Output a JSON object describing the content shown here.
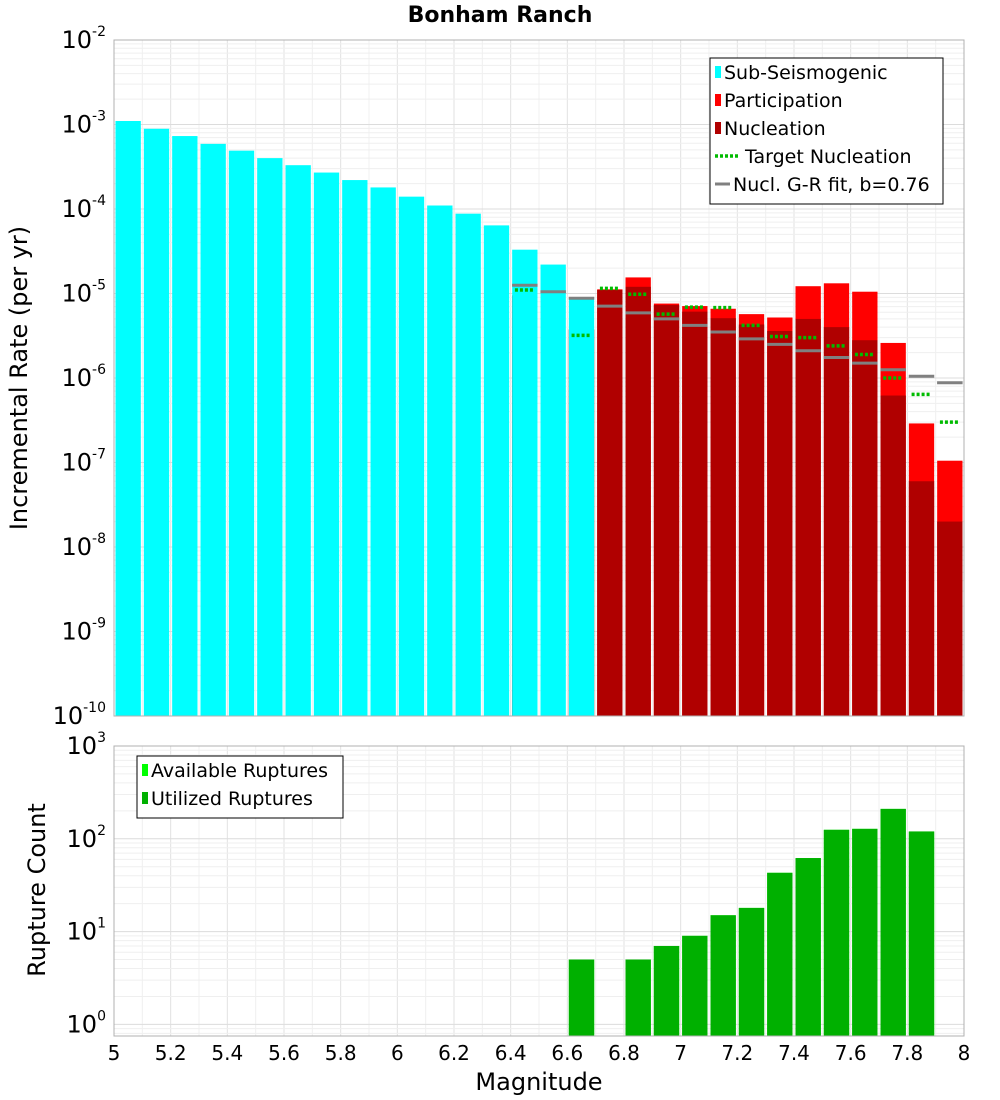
{
  "chart_data": [
    {
      "type": "bar",
      "title": "Bonham Ranch",
      "xlabel": "",
      "ylabel": "Incremental Rate (per yr)",
      "yscale": "log",
      "xlim": [
        5,
        8
      ],
      "ylim": [
        1e-10,
        0.01
      ],
      "y_ticks": [
        {
          "base": "10",
          "exp": "-10",
          "value": 1e-10
        },
        {
          "base": "10",
          "exp": "-9",
          "value": 1e-09
        },
        {
          "base": "10",
          "exp": "-8",
          "value": 1e-08
        },
        {
          "base": "10",
          "exp": "-7",
          "value": 1e-07
        },
        {
          "base": "10",
          "exp": "-6",
          "value": 1e-06
        },
        {
          "base": "10",
          "exp": "-5",
          "value": 1e-05
        },
        {
          "base": "10",
          "exp": "-4",
          "value": 0.0001
        },
        {
          "base": "10",
          "exp": "-3",
          "value": 0.001
        },
        {
          "base": "10",
          "exp": "-2",
          "value": 0.01
        }
      ],
      "bin_width": 0.1,
      "legend_position": "top-right",
      "legend": [
        {
          "label": "Sub-Seismogenic",
          "color": "#00ffff",
          "kind": "bar"
        },
        {
          "label": "Participation",
          "color": "#ff0000",
          "kind": "bar"
        },
        {
          "label": "Nucleation",
          "color": "#b00000",
          "kind": "bar"
        },
        {
          "label": "Target Nucleation",
          "color": "#00bb00",
          "kind": "dotted"
        },
        {
          "label": "Nucl. G-R fit, b=0.76",
          "color": "#808080",
          "kind": "line"
        }
      ],
      "series": [
        {
          "name": "Sub-Seismogenic",
          "color": "#00ffff",
          "x": [
            5.05,
            5.15,
            5.25,
            5.35,
            5.45,
            5.55,
            5.65,
            5.75,
            5.85,
            5.95,
            6.05,
            6.15,
            6.25,
            6.35,
            6.45,
            6.55,
            6.65
          ],
          "values": [
            0.0011,
            0.00089,
            0.00073,
            0.00059,
            0.00049,
            0.0004,
            0.00033,
            0.00027,
            0.00022,
            0.00018,
            0.00014,
            0.00011,
            8.8e-05,
            6.4e-05,
            3.3e-05,
            2.2e-05,
            8.9e-06
          ]
        },
        {
          "name": "Participation",
          "color": "#ff0000",
          "x": [
            6.45,
            6.65,
            6.75,
            6.85,
            6.95,
            7.05,
            7.15,
            7.25,
            7.35,
            7.45,
            7.55,
            7.65,
            7.75,
            7.85,
            7.95
          ],
          "values": [
            9.5e-06,
            3.8e-06,
            1.12e-05,
            1.55e-05,
            7.6e-06,
            7.1e-06,
            6.6e-06,
            5.7e-06,
            5.2e-06,
            1.22e-05,
            1.32e-05,
            1.05e-05,
            2.6e-06,
            2.9e-07,
            1.05e-07
          ]
        },
        {
          "name": "Nucleation",
          "color": "#b00000",
          "x": [
            6.45,
            6.65,
            6.75,
            6.85,
            6.95,
            7.05,
            7.15,
            7.25,
            7.35,
            7.45,
            7.55,
            7.65,
            7.75,
            7.85,
            7.95
          ],
          "values": [
            9.5e-06,
            3.7e-06,
            1.1e-05,
            1.2e-05,
            7.3e-06,
            6.1e-06,
            5.1e-06,
            4.3e-06,
            3.6e-06,
            5e-06,
            4e-06,
            2.8e-06,
            6.2e-07,
            6e-08,
            2e-08
          ]
        },
        {
          "name": "Target Nucleation",
          "color": "#00bb00",
          "x": [
            6.45,
            6.65,
            6.75,
            6.85,
            6.95,
            7.05,
            7.15,
            7.25,
            7.35,
            7.45,
            7.55,
            7.65,
            7.75,
            7.85,
            7.95
          ],
          "values": [
            1.1e-05,
            3.2e-06,
            1.15e-05,
            9.8e-06,
            5.7e-06,
            6.9e-06,
            6.8e-06,
            4.2e-06,
            3.1e-06,
            3e-06,
            2.4e-06,
            1.9e-06,
            1e-06,
            6.4e-07,
            3e-07
          ]
        },
        {
          "name": "Nucl. G-R fit, b=0.76",
          "color": "#808080",
          "x": [
            6.45,
            6.55,
            6.65,
            6.75,
            6.85,
            6.95,
            7.05,
            7.15,
            7.25,
            7.35,
            7.45,
            7.55,
            7.65,
            7.75,
            7.85,
            7.95
          ],
          "values": [
            1.25e-05,
            1.05e-05,
            8.8e-06,
            7.1e-06,
            5.9e-06,
            5e-06,
            4.2e-06,
            3.5e-06,
            2.9e-06,
            2.5e-06,
            2.1e-06,
            1.75e-06,
            1.5e-06,
            1.25e-06,
            1.05e-06,
            8.8e-07
          ]
        }
      ]
    },
    {
      "type": "bar",
      "title": "",
      "xlabel": "Magnitude",
      "ylabel": "Rupture Count",
      "yscale": "log",
      "xlim": [
        5,
        8
      ],
      "ylim": [
        0.75,
        1000
      ],
      "x_ticks": [
        "5",
        "5.2",
        "5.4",
        "5.6",
        "5.8",
        "6",
        "6.2",
        "6.4",
        "6.6",
        "6.8",
        "7",
        "7.2",
        "7.4",
        "7.6",
        "7.8",
        "8"
      ],
      "y_ticks": [
        {
          "base": "10",
          "exp": "0",
          "value": 1
        },
        {
          "base": "10",
          "exp": "1",
          "value": 10
        },
        {
          "base": "10",
          "exp": "2",
          "value": 100
        },
        {
          "base": "10",
          "exp": "3",
          "value": 1000
        }
      ],
      "bin_width": 0.1,
      "legend_position": "top-left",
      "legend": [
        {
          "label": "Available Ruptures",
          "color": "#00ff00",
          "kind": "bar"
        },
        {
          "label": "Utilized Ruptures",
          "color": "#00b000",
          "kind": "bar"
        }
      ],
      "series": [
        {
          "name": "Available Ruptures",
          "color": "#00ff00",
          "x": [
            6.65,
            6.85,
            6.95,
            7.05,
            7.15,
            7.25,
            7.35,
            7.45,
            7.55,
            7.65,
            7.75,
            7.85
          ],
          "values": [
            5,
            5,
            7,
            9,
            15,
            18,
            43,
            62,
            125,
            128,
            210,
            120
          ]
        },
        {
          "name": "Utilized Ruptures",
          "color": "#00b000",
          "x": [
            6.65,
            6.85,
            6.95,
            7.05,
            7.15,
            7.25,
            7.35,
            7.45,
            7.55,
            7.65,
            7.75,
            7.85
          ],
          "values": [
            5,
            5,
            7,
            9,
            15,
            18,
            43,
            62,
            125,
            128,
            210,
            120
          ]
        }
      ]
    }
  ]
}
